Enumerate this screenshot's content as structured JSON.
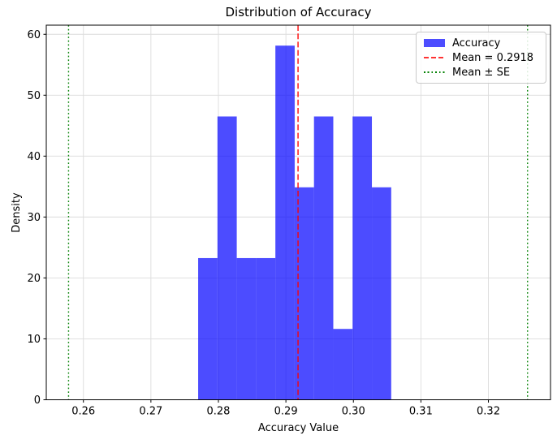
{
  "figure": {
    "background": "#ffffff"
  },
  "chart_data": {
    "type": "bar",
    "subtype": "histogram",
    "title": "Distribution of Accuracy",
    "xlabel": "Accuracy Value",
    "ylabel": "Density",
    "bin_edges": [
      0.277,
      0.27986,
      0.28272,
      0.28558,
      0.28844,
      0.2913,
      0.29416,
      0.29702,
      0.29988,
      0.30274,
      0.3056
    ],
    "densities": [
      23.26,
      46.51,
      23.26,
      23.26,
      58.14,
      34.88,
      46.51,
      11.63,
      46.51,
      34.88
    ],
    "bar_color": "#0000ff",
    "bar_alpha": 0.7,
    "xlim": [
      0.2545,
      0.3292
    ],
    "ylim": [
      0,
      61.5
    ],
    "x_ticks": [
      0.26,
      0.27,
      0.28,
      0.29,
      0.3,
      0.31,
      0.32
    ],
    "x_tick_labels": [
      "0.26",
      "0.27",
      "0.28",
      "0.29",
      "0.30",
      "0.31",
      "0.32"
    ],
    "y_ticks": [
      0,
      10,
      20,
      30,
      40,
      50,
      60
    ],
    "y_tick_labels": [
      "0",
      "10",
      "20",
      "30",
      "40",
      "50",
      "60"
    ],
    "grid": true,
    "grid_color": "#dcdcdc",
    "mean_line": {
      "value": 0.2918,
      "color": "#ff0000",
      "alpha": 0.8,
      "style": "dashed"
    },
    "se_lines": {
      "values": [
        0.2578,
        0.3258
      ],
      "color": "#008000",
      "alpha": 0.95,
      "style": "dotted"
    },
    "legend": {
      "position": "upper right",
      "items": [
        {
          "label": "Accuracy",
          "handle": "patch",
          "color": "#4d4dff"
        },
        {
          "label": "Mean = 0.2918",
          "handle": "dashed-line",
          "color": "#ff3333"
        },
        {
          "label": "Mean ± SE",
          "handle": "dotted-line",
          "color": "#008000"
        }
      ]
    }
  }
}
